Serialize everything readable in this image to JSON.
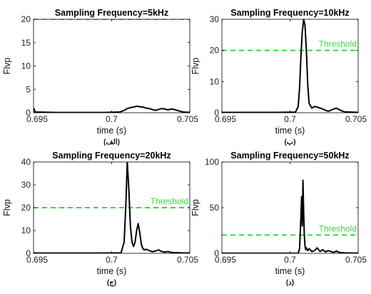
{
  "colors": {
    "line": "#000000",
    "threshold": "#33dd33",
    "axis": "#000000",
    "background": "#ffffff"
  },
  "chart_data": [
    {
      "type": "line",
      "title": "Sampling Frequency=5kHz",
      "caption": "(الف)",
      "xlabel": "time (s)",
      "ylabel": "Flvp",
      "xlim": [
        0.695,
        0.705
      ],
      "ylim": [
        0,
        20
      ],
      "xticks": [
        0.695,
        0.7,
        0.705
      ],
      "xtick_labels": [
        "0.695",
        "0.7",
        "0.705"
      ],
      "yticks": [
        0,
        5,
        10,
        15,
        20
      ],
      "ytick_labels": [
        "0",
        "5",
        "10",
        "15",
        "20"
      ],
      "grid": false,
      "threshold": {
        "value": 20,
        "label": ""
      },
      "series": [
        {
          "x": [
            0.695,
            0.69502,
            0.6951,
            0.6965,
            0.698,
            0.6995,
            0.7005,
            0.7008,
            0.701,
            0.7012,
            0.7014,
            0.7016,
            0.7018,
            0.702,
            0.7022,
            0.7024,
            0.7026,
            0.7028,
            0.703,
            0.7032,
            0.7034,
            0.7036,
            0.7038,
            0.704,
            0.7042,
            0.7044,
            0.7046,
            0.7048,
            0.705
          ],
          "y": [
            0.9,
            0.9,
            0.15,
            0.05,
            0.05,
            0.05,
            0.15,
            0.5,
            0.9,
            1.1,
            1.2,
            1.4,
            1.3,
            1.2,
            1.0,
            0.9,
            0.7,
            0.5,
            0.7,
            0.9,
            0.8,
            0.6,
            0.8,
            0.7,
            0.5,
            0.3,
            0.15,
            0.1,
            0.1
          ]
        }
      ]
    },
    {
      "type": "line",
      "title": "Sampling Frequency=10kHz",
      "caption": "(ب)",
      "xlabel": "time (s)",
      "ylabel": "Flvp",
      "xlim": [
        0.695,
        0.705
      ],
      "ylim": [
        0,
        30
      ],
      "xticks": [
        0.695,
        0.7,
        0.705
      ],
      "xtick_labels": [
        "0.695",
        "0.7",
        "0.705"
      ],
      "yticks": [
        0,
        10,
        20,
        30
      ],
      "ytick_labels": [
        "0",
        "10",
        "20",
        "30"
      ],
      "grid": false,
      "threshold": {
        "value": 20,
        "label": "Threshold"
      },
      "series": [
        {
          "x": [
            0.695,
            0.697,
            0.699,
            0.7004,
            0.7006,
            0.7007,
            0.7008,
            0.7009,
            0.701,
            0.7011,
            0.7012,
            0.7013,
            0.7014,
            0.7016,
            0.7018,
            0.702,
            0.7022,
            0.7024,
            0.7026,
            0.7028,
            0.703,
            0.7032,
            0.7034,
            0.7036,
            0.7038,
            0.704,
            0.7045,
            0.705
          ],
          "y": [
            0.1,
            0.1,
            0.1,
            0.2,
            2,
            8,
            18,
            26,
            30,
            28,
            20,
            9,
            3,
            1.5,
            2,
            1.8,
            1.5,
            1.2,
            0.8,
            0.5,
            0.8,
            1.2,
            1.5,
            1.0,
            0.6,
            0.3,
            0.2,
            0.1
          ]
        }
      ]
    },
    {
      "type": "line",
      "title": "Sampling Frequency=20kHz",
      "caption": "(ج)",
      "xlabel": "time (s)",
      "ylabel": "Flvp",
      "xlim": [
        0.695,
        0.705
      ],
      "ylim": [
        0,
        40
      ],
      "xticks": [
        0.695,
        0.7,
        0.705
      ],
      "xtick_labels": [
        "0.695",
        "0.7",
        "0.705"
      ],
      "yticks": [
        0,
        10,
        20,
        30,
        40
      ],
      "ytick_labels": [
        "0",
        "10",
        "20",
        "30",
        "40"
      ],
      "grid": false,
      "threshold": {
        "value": 20,
        "label": "Threshold"
      },
      "series": [
        {
          "x": [
            0.695,
            0.697,
            0.699,
            0.7006,
            0.7008,
            0.7009,
            0.701,
            0.7011,
            0.7012,
            0.7013,
            0.7014,
            0.7015,
            0.7016,
            0.7017,
            0.7018,
            0.7019,
            0.702,
            0.7021,
            0.7022,
            0.7024,
            0.7026,
            0.7028,
            0.703,
            0.7032,
            0.7034,
            0.7036,
            0.7038,
            0.704,
            0.7045,
            0.705
          ],
          "y": [
            0.1,
            0.1,
            0.1,
            0.2,
            5,
            20,
            40,
            28,
            12,
            5,
            3,
            5,
            10,
            13,
            9,
            4,
            2,
            1.5,
            1.8,
            1.2,
            0.7,
            1.0,
            1.5,
            0.8,
            0.5,
            0.8,
            0.4,
            0.3,
            0.2,
            0.1
          ]
        }
      ]
    },
    {
      "type": "line",
      "title": "Sampling Frequency=50kHz",
      "caption": "(د)",
      "xlabel": "time (s)",
      "ylabel": "Flvp",
      "xlim": [
        0.695,
        0.705
      ],
      "ylim": [
        0,
        100
      ],
      "xticks": [
        0.695,
        0.7,
        0.705
      ],
      "xtick_labels": [
        "0.695",
        "0.7",
        "0.705"
      ],
      "yticks": [
        0,
        50,
        100
      ],
      "ytick_labels": [
        "0",
        "50",
        "100"
      ],
      "grid": false,
      "threshold": {
        "value": 20,
        "label": "Threshold"
      },
      "series": [
        {
          "x": [
            0.695,
            0.697,
            0.699,
            0.7006,
            0.7007,
            0.7008,
            0.70085,
            0.7009,
            0.70095,
            0.701,
            0.70105,
            0.7011,
            0.70115,
            0.7012,
            0.7013,
            0.7014,
            0.7016,
            0.7018,
            0.702,
            0.7022,
            0.7024,
            0.7026,
            0.7028,
            0.703,
            0.7032,
            0.7034,
            0.7036,
            0.7038,
            0.704,
            0.7045,
            0.705
          ],
          "y": [
            0.1,
            0.1,
            0.1,
            0.2,
            5,
            40,
            62,
            30,
            80,
            45,
            20,
            8,
            4,
            6,
            3,
            5,
            2,
            3,
            6,
            2,
            4,
            1.5,
            3,
            2,
            1,
            2.5,
            1,
            0.8,
            0.5,
            0.3,
            0.2
          ]
        }
      ]
    }
  ]
}
